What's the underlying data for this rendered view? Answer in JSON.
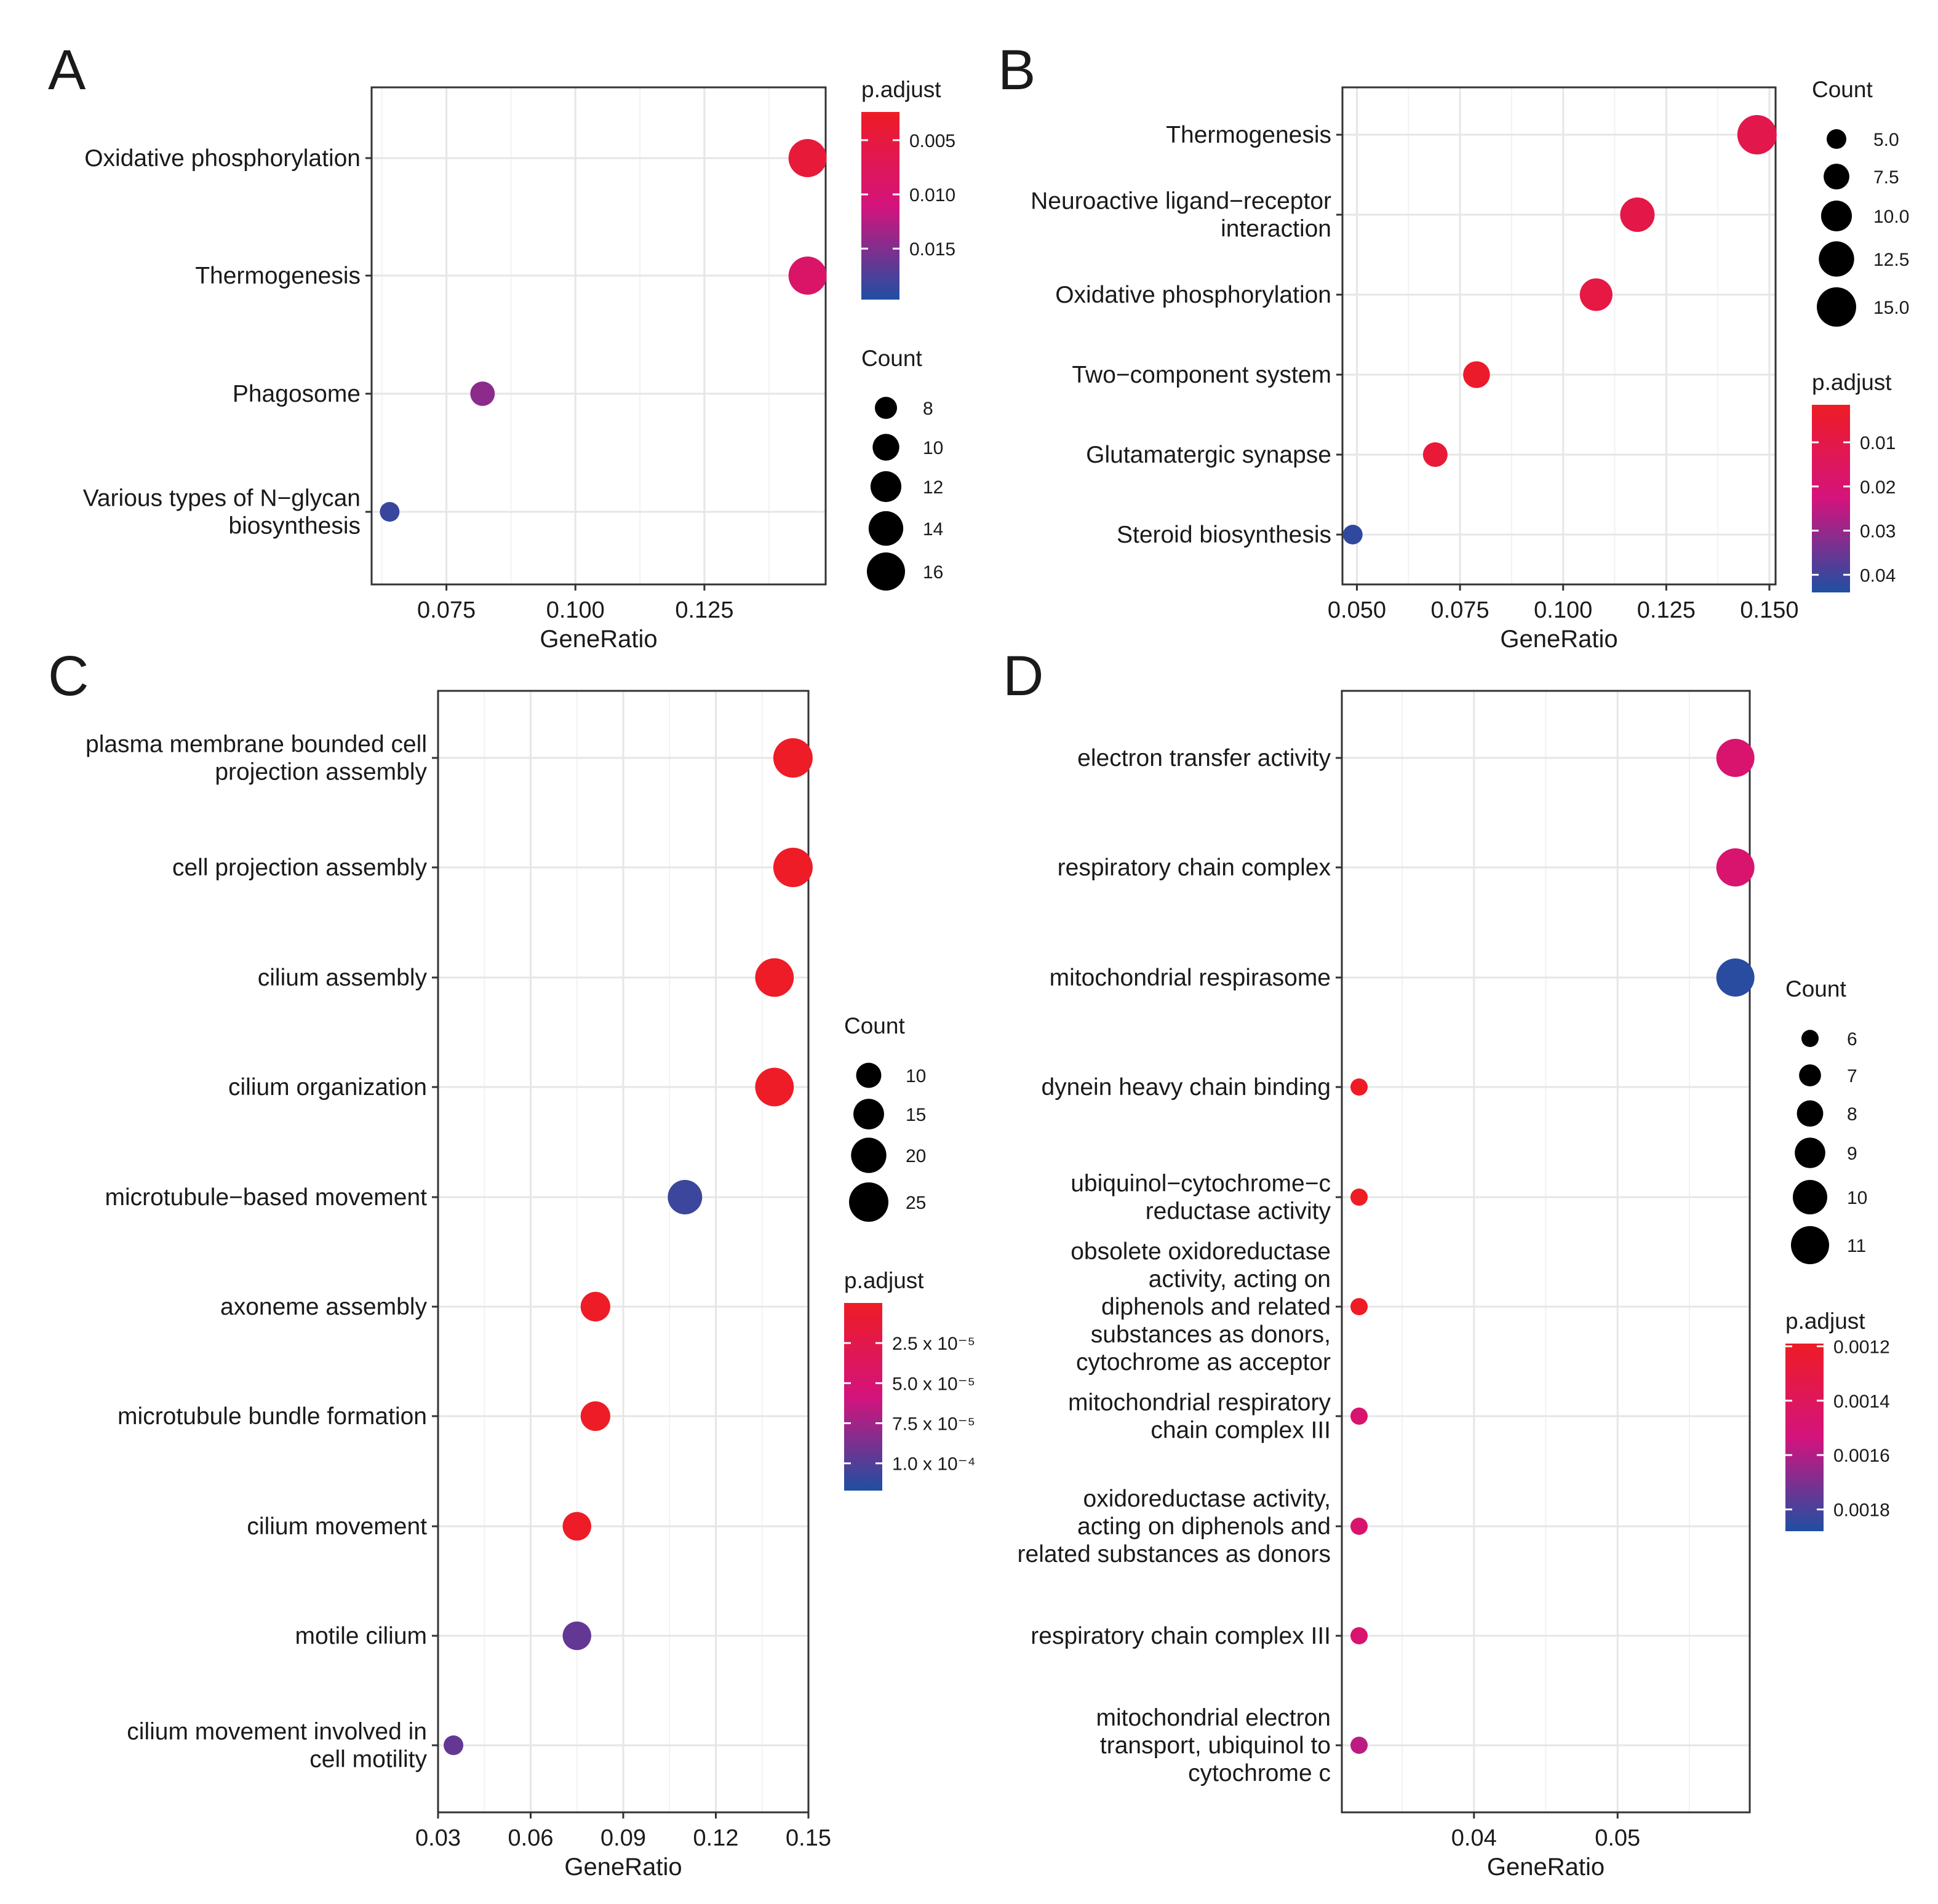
{
  "chart_data": [
    {
      "panel": "A",
      "type": "scatter",
      "xlabel": "GeneRatio",
      "xlim": [
        0.0605,
        0.1485
      ],
      "xticks": [
        0.075,
        0.1,
        0.125
      ],
      "xtick_labels": [
        "0.075",
        "0.100",
        "0.125"
      ],
      "categories": [
        "Oxidative phosphorylation",
        "Thermogenesis",
        "Phagosome",
        "Various types of N−glycan biosynthesis"
      ],
      "category_lines": [
        [
          "Oxidative phosphorylation"
        ],
        [
          "Thermogenesis"
        ],
        [
          "Phagosome"
        ],
        [
          "Various types of N−glycan",
          "biosynthesis"
        ]
      ],
      "gene_ratio": [
        0.145,
        0.145,
        0.082,
        0.064
      ],
      "count": [
        16,
        16,
        9,
        7
      ],
      "p_adjust": [
        0.0045,
        0.009,
        0.0145,
        0.0185
      ],
      "color_legend": {
        "title": "p.adjust",
        "domain": [
          0.0024,
          0.0197
        ],
        "ticks": [
          0.005,
          0.01,
          0.015
        ],
        "tick_labels": [
          "0.005",
          "0.010",
          "0.015"
        ]
      },
      "size_legend": {
        "title": "Count",
        "domain": [
          7,
          16
        ],
        "values": [
          8,
          10,
          12,
          14,
          16
        ],
        "labels": [
          "8",
          "10",
          "12",
          "14",
          "16"
        ]
      },
      "legend_order": [
        "color",
        "size"
      ]
    },
    {
      "panel": "B",
      "type": "scatter",
      "xlabel": "GeneRatio",
      "xlim": [
        0.0465,
        0.1515
      ],
      "xticks": [
        0.05,
        0.075,
        0.1,
        0.125,
        0.15
      ],
      "xtick_labels": [
        "0.050",
        "0.075",
        "0.100",
        "0.125",
        "0.150"
      ],
      "categories": [
        "Thermogenesis",
        "Neuroactive ligand−receptor interaction",
        "Oxidative phosphorylation",
        "Two−component system",
        "Glutamatergic synapse",
        "Steroid biosynthesis"
      ],
      "category_lines": [
        [
          "Thermogenesis"
        ],
        [
          "Neuroactive ligand−receptor",
          "interaction"
        ],
        [
          "Oxidative phosphorylation"
        ],
        [
          "Two−component system"
        ],
        [
          "Glutamatergic synapse"
        ],
        [
          "Steroid biosynthesis"
        ]
      ],
      "gene_ratio": [
        0.147,
        0.118,
        0.108,
        0.079,
        0.069,
        0.049
      ],
      "count": [
        15,
        12,
        11,
        8,
        7,
        5
      ],
      "p_adjust": [
        0.011,
        0.01,
        0.009,
        0.003,
        0.006,
        0.042
      ],
      "color_legend": {
        "title": "p.adjust",
        "domain": [
          0.0015,
          0.044
        ],
        "ticks": [
          0.01,
          0.02,
          0.03,
          0.04
        ],
        "tick_labels": [
          "0.01",
          "0.02",
          "0.03",
          "0.04"
        ]
      },
      "size_legend": {
        "title": "Count",
        "domain": [
          5,
          15
        ],
        "values": [
          5,
          7.5,
          10,
          12.5,
          15
        ],
        "labels": [
          "5.0",
          "7.5",
          "10.0",
          "12.5",
          "15.0"
        ]
      },
      "legend_order": [
        "size",
        "color"
      ]
    },
    {
      "panel": "C",
      "type": "scatter",
      "xlabel": "GeneRatio",
      "xlim": [
        0.03,
        0.15
      ],
      "xticks": [
        0.03,
        0.06,
        0.09,
        0.12,
        0.15
      ],
      "xtick_labels": [
        "0.03",
        "0.06",
        "0.09",
        "0.12",
        "0.15"
      ],
      "categories": [
        "plasma membrane bounded cell projection assembly",
        "cell projection assembly",
        "cilium assembly",
        "cilium organization",
        "microtubule−based movement",
        "axoneme assembly",
        "microtubule bundle formation",
        "cilium movement",
        "motile cilium",
        "cilium movement involved in cell motility"
      ],
      "category_lines": [
        [
          "plasma membrane bounded cell",
          "projection assembly"
        ],
        [
          "cell projection assembly"
        ],
        [
          "cilium assembly"
        ],
        [
          "cilium organization"
        ],
        [
          "microtubule−based movement"
        ],
        [
          "axoneme assembly"
        ],
        [
          "microtubule bundle formation"
        ],
        [
          "cilium movement"
        ],
        [
          "motile cilium"
        ],
        [
          "cilium movement involved in",
          "cell motility"
        ]
      ],
      "gene_ratio": [
        0.145,
        0.145,
        0.139,
        0.139,
        0.11,
        0.081,
        0.081,
        0.075,
        0.075,
        0.035
      ],
      "count": [
        25,
        25,
        24,
        24,
        19,
        14,
        14,
        13,
        13,
        6
      ],
      "p_adjust": [
        5e-07,
        5e-07,
        5e-07,
        5e-07,
        0.000108,
        5e-07,
        5e-07,
        5e-07,
        9.5e-05,
        9.5e-05
      ],
      "color_legend": {
        "title": "p.adjust",
        "domain": [
          0,
          0.000117
        ],
        "ticks": [
          2.5e-05,
          5e-05,
          7.5e-05,
          0.0001
        ],
        "tick_labels": [
          "2.5 x 10⁻⁵",
          "5.0 x 10⁻⁵",
          "7.5 x 10⁻⁵",
          "1.0 x 10⁻⁴"
        ]
      },
      "size_legend": {
        "title": "Count",
        "domain": [
          6,
          25
        ],
        "values": [
          10,
          15,
          20,
          25
        ],
        "labels": [
          "10",
          "15",
          "20",
          "25"
        ]
      },
      "legend_order": [
        "size",
        "color"
      ]
    },
    {
      "panel": "D",
      "type": "scatter",
      "xlabel": "GeneRatio",
      "xlim": [
        0.0308,
        0.0592
      ],
      "xticks": [
        0.04,
        0.05
      ],
      "xtick_labels": [
        "0.04",
        "0.05"
      ],
      "categories": [
        "electron transfer activity",
        "respiratory chain complex",
        "mitochondrial respirasome",
        "dynein heavy chain binding",
        "ubiquinol−cytochrome−c reductase activity",
        "obsolete oxidoreductase activity, acting on diphenols and related substances as donors, cytochrome as acceptor",
        "mitochondrial respiratory chain complex III",
        "oxidoreductase activity, acting on diphenols and related substances as donors",
        "respiratory chain complex III",
        "mitochondrial electron transport, ubiquinol to cytochrome c"
      ],
      "category_lines": [
        [
          "electron transfer activity"
        ],
        [
          "respiratory chain complex"
        ],
        [
          "mitochondrial respirasome"
        ],
        [
          "dynein heavy chain binding"
        ],
        [
          "ubiquinol−cytochrome−c",
          "reductase activity"
        ],
        [
          "obsolete oxidoreductase",
          "activity, acting on",
          "diphenols and related",
          "substances as donors,",
          "cytochrome as acceptor"
        ],
        [
          "mitochondrial respiratory",
          "chain complex III"
        ],
        [
          "oxidoreductase activity,",
          "acting on diphenols and",
          "related substances as donors"
        ],
        [
          "respiratory chain complex III"
        ],
        [
          "mitochondrial electron",
          "transport, ubiquinol to",
          "cytochrome c"
        ]
      ],
      "gene_ratio": [
        0.0582,
        0.0582,
        0.0582,
        0.032,
        0.032,
        0.032,
        0.032,
        0.032,
        0.032,
        0.032
      ],
      "count": [
        11,
        11,
        11,
        6,
        6,
        6,
        6,
        6,
        6,
        6
      ],
      "p_adjust": [
        0.00148,
        0.00148,
        0.00186,
        0.00119,
        0.00119,
        0.00119,
        0.00148,
        0.00148,
        0.00148,
        0.00158
      ],
      "color_legend": {
        "title": "p.adjust",
        "domain": [
          0.00119,
          0.00188
        ],
        "ticks": [
          0.0012,
          0.0014,
          0.0016,
          0.0018
        ],
        "tick_labels": [
          "0.0012",
          "0.0014",
          "0.0016",
          "0.0018"
        ]
      },
      "size_legend": {
        "title": "Count",
        "domain": [
          6,
          11
        ],
        "values": [
          6,
          7,
          8,
          9,
          10,
          11
        ],
        "labels": [
          "6",
          "7",
          "8",
          "9",
          "10",
          "11"
        ]
      },
      "legend_order": [
        "size",
        "color"
      ]
    }
  ],
  "colors": {
    "low_p": "#ee1c25",
    "mid_p": "#d4137d",
    "high_p": "#1f4fa2"
  }
}
